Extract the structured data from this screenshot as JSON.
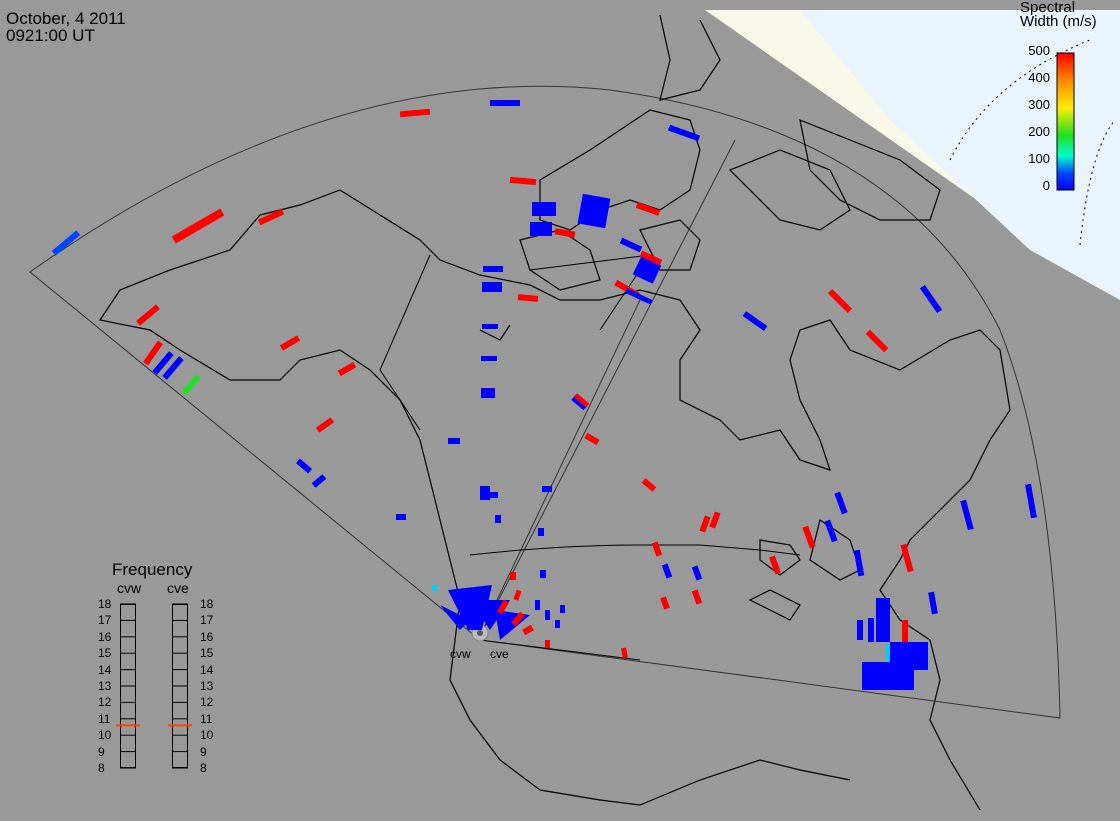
{
  "header": {
    "date": "October, 4 2011",
    "time": "0921:00 UT"
  },
  "colorbar": {
    "title_line1": "Spectral",
    "title_line2": "Width (m/s)",
    "ticks": [
      "500",
      "400",
      "300",
      "200",
      "100",
      "0"
    ],
    "colors": [
      "#ff0000",
      "#ff8800",
      "#ffee00",
      "#22dd22",
      "#00ffcc",
      "#0044ff",
      "#0000ff"
    ]
  },
  "frequency": {
    "title": "Frequency",
    "left_label": "cvw",
    "right_label": "cve",
    "ticks": [
      "18",
      "17",
      "16",
      "15",
      "14",
      "13",
      "12",
      "11",
      "10",
      "9",
      "8"
    ],
    "cvw_value": 10.6,
    "cve_value": 10.6,
    "marker_color": "#ff4400"
  },
  "sites": {
    "west": "cvw",
    "east": "cve"
  },
  "colors": {
    "background": "#999999",
    "daylight": "#f8f8e8",
    "polar": "#eaf4fc",
    "coast": "#000000",
    "low_width": "#0000ff",
    "high_width": "#ff0000",
    "mid_width": "#22dd22"
  }
}
